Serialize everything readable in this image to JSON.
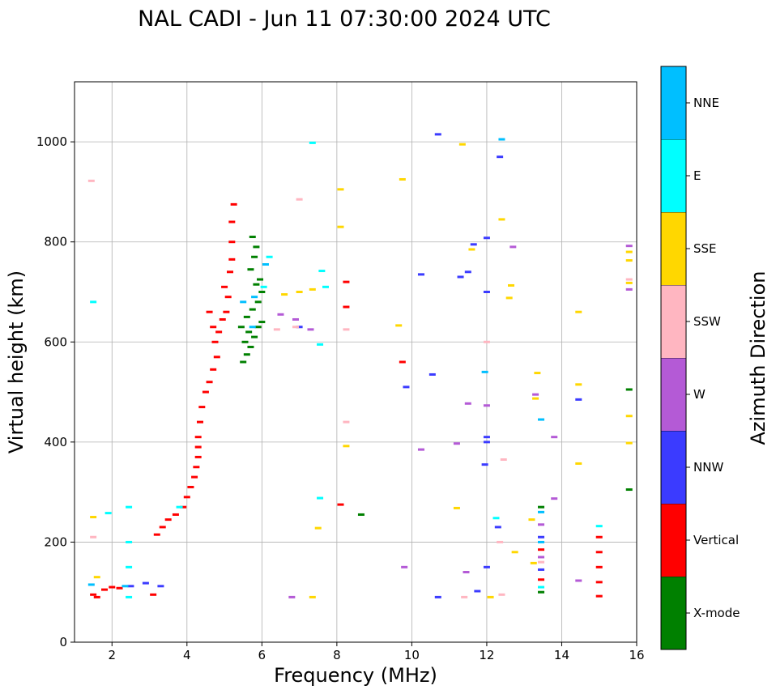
{
  "chart_data": {
    "type": "scatter",
    "title": "NAL CADI - Jun 11 07:30:00 2024 UTC",
    "xlabel": "Frequency (MHz)",
    "ylabel": "Virtual height (km)",
    "xlim": [
      1,
      16
    ],
    "ylim": [
      0,
      1120
    ],
    "xticks": [
      "2",
      "4",
      "6",
      "8",
      "10",
      "12",
      "14",
      "16"
    ],
    "yticks": [
      "0",
      "200",
      "400",
      "600",
      "800",
      "1000"
    ],
    "grid": true,
    "colorbar": {
      "label": "Azimuth Direction",
      "categories": [
        {
          "name": "X-mode",
          "color": "#008000"
        },
        {
          "name": "Vertical",
          "color": "#ff0000"
        },
        {
          "name": "NNW",
          "color": "#3b3bff"
        },
        {
          "name": "W",
          "color": "#b45ad6"
        },
        {
          "name": "SSW",
          "color": "#ffb6c1"
        },
        {
          "name": "SSE",
          "color": "#ffd700"
        },
        {
          "name": "E",
          "color": "#00ffff"
        },
        {
          "name": "NNE",
          "color": "#00bfff"
        }
      ]
    },
    "series": [
      {
        "name": "X-mode",
        "points": [
          [
            5.5,
            560
          ],
          [
            5.6,
            575
          ],
          [
            5.7,
            590
          ],
          [
            5.8,
            610
          ],
          [
            5.9,
            630
          ],
          [
            6.0,
            640
          ],
          [
            5.6,
            650
          ],
          [
            5.75,
            665
          ],
          [
            5.9,
            680
          ],
          [
            6.0,
            700
          ],
          [
            5.85,
            715
          ],
          [
            5.95,
            725
          ],
          [
            5.7,
            745
          ],
          [
            5.8,
            770
          ],
          [
            5.85,
            790
          ],
          [
            5.75,
            810
          ],
          [
            5.55,
            600
          ],
          [
            5.65,
            620
          ],
          [
            5.45,
            630
          ],
          [
            8.65,
            255
          ],
          [
            15.8,
            505
          ],
          [
            15.8,
            305
          ],
          [
            13.45,
            100
          ],
          [
            13.45,
            270
          ]
        ]
      },
      {
        "name": "Vertical",
        "points": [
          [
            1.5,
            95
          ],
          [
            1.6,
            90
          ],
          [
            1.8,
            105
          ],
          [
            2.0,
            110
          ],
          [
            2.2,
            108
          ],
          [
            3.1,
            95
          ],
          [
            3.2,
            215
          ],
          [
            3.35,
            230
          ],
          [
            3.5,
            245
          ],
          [
            3.7,
            255
          ],
          [
            3.9,
            270
          ],
          [
            4.0,
            290
          ],
          [
            4.1,
            310
          ],
          [
            4.2,
            330
          ],
          [
            4.25,
            350
          ],
          [
            4.3,
            370
          ],
          [
            4.3,
            390
          ],
          [
            4.3,
            410
          ],
          [
            4.35,
            440
          ],
          [
            4.4,
            470
          ],
          [
            4.5,
            500
          ],
          [
            4.6,
            520
          ],
          [
            4.7,
            545
          ],
          [
            4.8,
            570
          ],
          [
            4.75,
            600
          ],
          [
            4.85,
            620
          ],
          [
            4.95,
            645
          ],
          [
            5.05,
            660
          ],
          [
            5.1,
            690
          ],
          [
            5.0,
            710
          ],
          [
            5.15,
            740
          ],
          [
            5.2,
            765
          ],
          [
            5.2,
            800
          ],
          [
            5.2,
            840
          ],
          [
            5.25,
            875
          ],
          [
            4.6,
            660
          ],
          [
            4.7,
            630
          ],
          [
            8.25,
            720
          ],
          [
            8.25,
            670
          ],
          [
            8.1,
            275
          ],
          [
            9.75,
            560
          ],
          [
            15.0,
            92
          ],
          [
            15.0,
            120
          ],
          [
            15.0,
            150
          ],
          [
            15.0,
            180
          ],
          [
            15.0,
            210
          ],
          [
            13.45,
            125
          ],
          [
            13.45,
            185
          ]
        ]
      },
      {
        "name": "NNW",
        "points": [
          [
            3.3,
            112
          ],
          [
            2.9,
            118
          ],
          [
            2.5,
            112
          ],
          [
            10.7,
            1015
          ],
          [
            12.35,
            970
          ],
          [
            12.0,
            808
          ],
          [
            11.65,
            795
          ],
          [
            11.5,
            740
          ],
          [
            11.3,
            730
          ],
          [
            10.25,
            735
          ],
          [
            12.0,
            700
          ],
          [
            10.55,
            535
          ],
          [
            9.85,
            510
          ],
          [
            12.0,
            410
          ],
          [
            12.0,
            400
          ],
          [
            11.95,
            355
          ],
          [
            12.3,
            230
          ],
          [
            12.0,
            150
          ],
          [
            11.75,
            102
          ],
          [
            10.7,
            90
          ],
          [
            14.45,
            485
          ],
          [
            13.45,
            210
          ],
          [
            13.45,
            145
          ],
          [
            7.0,
            630
          ]
        ]
      },
      {
        "name": "W",
        "points": [
          [
            6.5,
            655
          ],
          [
            6.9,
            645
          ],
          [
            7.3,
            625
          ],
          [
            11.5,
            477
          ],
          [
            12.0,
            473
          ],
          [
            13.3,
            495
          ],
          [
            12.7,
            790
          ],
          [
            13.8,
            410
          ],
          [
            13.8,
            287
          ],
          [
            10.25,
            385
          ],
          [
            11.2,
            397
          ],
          [
            11.45,
            140
          ],
          [
            14.45,
            123
          ],
          [
            9.8,
            150
          ],
          [
            6.8,
            90
          ],
          [
            15.8,
            792
          ],
          [
            15.8,
            705
          ],
          [
            13.45,
            170
          ],
          [
            13.45,
            235
          ]
        ]
      },
      {
        "name": "SSW",
        "points": [
          [
            1.45,
            922
          ],
          [
            1.5,
            210
          ],
          [
            6.4,
            625
          ],
          [
            6.9,
            630
          ],
          [
            7.0,
            885
          ],
          [
            8.25,
            625
          ],
          [
            8.25,
            440
          ],
          [
            12.0,
            600
          ],
          [
            12.45,
            365
          ],
          [
            12.4,
            95
          ],
          [
            12.35,
            200
          ],
          [
            11.4,
            90
          ],
          [
            15.8,
            725
          ],
          [
            13.45,
            160
          ]
        ]
      },
      {
        "name": "SSE",
        "points": [
          [
            1.5,
            250
          ],
          [
            1.6,
            130
          ],
          [
            6.6,
            695
          ],
          [
            7.0,
            700
          ],
          [
            7.35,
            705
          ],
          [
            8.1,
            905
          ],
          [
            8.1,
            830
          ],
          [
            9.75,
            925
          ],
          [
            11.35,
            995
          ],
          [
            11.6,
            785
          ],
          [
            12.65,
            713
          ],
          [
            12.6,
            688
          ],
          [
            12.4,
            845
          ],
          [
            13.35,
            538
          ],
          [
            13.3,
            487
          ],
          [
            12.75,
            180
          ],
          [
            13.2,
            245
          ],
          [
            13.25,
            158
          ],
          [
            11.2,
            268
          ],
          [
            8.25,
            392
          ],
          [
            7.5,
            228
          ],
          [
            7.35,
            90
          ],
          [
            14.45,
            660
          ],
          [
            14.45,
            515
          ],
          [
            14.45,
            357
          ],
          [
            15.8,
            780
          ],
          [
            15.8,
            763
          ],
          [
            15.8,
            718
          ],
          [
            15.8,
            452
          ],
          [
            15.8,
            398
          ],
          [
            12.1,
            90
          ],
          [
            9.65,
            633
          ]
        ]
      },
      {
        "name": "E",
        "points": [
          [
            2.45,
            90
          ],
          [
            2.45,
            150
          ],
          [
            2.45,
            200
          ],
          [
            2.45,
            270
          ],
          [
            1.5,
            680
          ],
          [
            1.9,
            258
          ],
          [
            3.8,
            270
          ],
          [
            7.35,
            998
          ],
          [
            7.6,
            742
          ],
          [
            7.7,
            710
          ],
          [
            7.55,
            595
          ],
          [
            7.55,
            288
          ],
          [
            12.25,
            248
          ],
          [
            15.0,
            232
          ],
          [
            13.45,
            110
          ],
          [
            6.05,
            710
          ],
          [
            6.2,
            770
          ]
        ]
      },
      {
        "name": "NNE",
        "points": [
          [
            1.45,
            115
          ],
          [
            2.35,
            112
          ],
          [
            5.5,
            680
          ],
          [
            5.8,
            690
          ],
          [
            5.75,
            630
          ],
          [
            6.1,
            755
          ],
          [
            12.4,
            1005
          ],
          [
            11.95,
            540
          ],
          [
            13.45,
            445
          ],
          [
            13.45,
            200
          ],
          [
            13.45,
            260
          ]
        ]
      }
    ]
  }
}
